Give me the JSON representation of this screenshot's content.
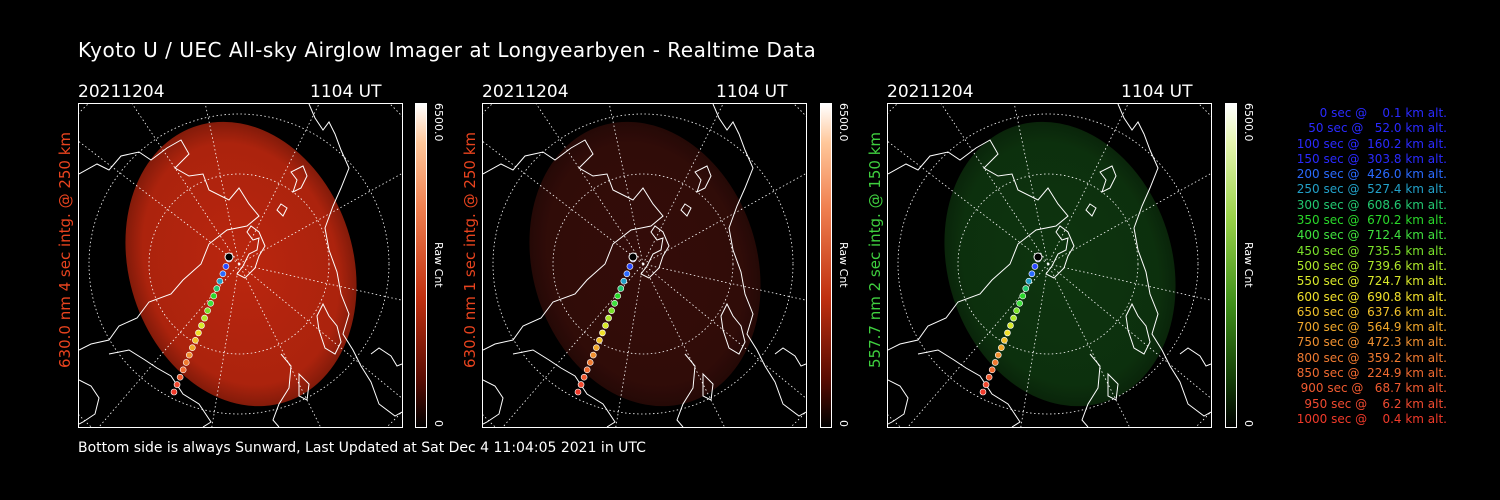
{
  "title": "Kyoto U / UEC All-sky Airglow Imager at Longyearbyen - Realtime Data",
  "footer": "Bottom side is always Sunward, Last Updated at Sat Dec  4 11:04:05 2021 in UTC",
  "colors": {
    "red": "#e8431e",
    "green": "#3fcf3f",
    "background": "#000000"
  },
  "panels": [
    {
      "date": "20211204",
      "time": "1104 UT",
      "side_label": "630.0 nm 4 sec intg. @ 250 km",
      "cbar_max": "6500.0",
      "cbar_label": "Raw Cnt",
      "cbar_min": "0",
      "image_color": "#c4280f",
      "image_brightness": "high"
    },
    {
      "date": "20211204",
      "time": "1104 UT",
      "side_label": "630.0 nm 1 sec intg. @ 250 km",
      "cbar_max": "6500.0",
      "cbar_label": "Raw Cnt",
      "cbar_min": "0",
      "image_color": "#3a0e0a",
      "image_brightness": "low"
    },
    {
      "date": "20211204",
      "time": "1104 UT",
      "side_label": "557.7 nm 2 sec intg. @ 150 km",
      "cbar_max": "6500.0",
      "cbar_label": "Raw Cnt",
      "cbar_min": "0",
      "image_color": "#0f3a10",
      "image_brightness": "low"
    }
  ],
  "legend": [
    {
      "text": "   0 sec @    0.1 km alt.",
      "color": "#2a2aff"
    },
    {
      "text": "  50 sec @   52.0 km alt.",
      "color": "#2a2aff"
    },
    {
      "text": " 100 sec @  160.2 km alt.",
      "color": "#2a2aff"
    },
    {
      "text": " 150 sec @  303.8 km alt.",
      "color": "#2a2aff"
    },
    {
      "text": " 200 sec @  426.0 km alt.",
      "color": "#2a6aff"
    },
    {
      "text": " 250 sec @  527.4 km alt.",
      "color": "#22a0c8"
    },
    {
      "text": " 300 sec @  608.6 km alt.",
      "color": "#22c870"
    },
    {
      "text": " 350 sec @  670.2 km alt.",
      "color": "#2ad82a"
    },
    {
      "text": " 400 sec @  712.4 km alt.",
      "color": "#3ee03e"
    },
    {
      "text": " 450 sec @  735.5 km alt.",
      "color": "#7ae02a"
    },
    {
      "text": " 500 sec @  739.6 km alt.",
      "color": "#aee82a"
    },
    {
      "text": " 550 sec @  724.7 km alt.",
      "color": "#d8e82a"
    },
    {
      "text": " 600 sec @  690.8 km alt.",
      "color": "#f0e02a"
    },
    {
      "text": " 650 sec @  637.6 km alt.",
      "color": "#f0c02a"
    },
    {
      "text": " 700 sec @  564.9 km alt.",
      "color": "#f0a82a"
    },
    {
      "text": " 750 sec @  472.3 km alt.",
      "color": "#f09030"
    },
    {
      "text": " 800 sec @  359.2 km alt.",
      "color": "#f07a30"
    },
    {
      "text": " 850 sec @  224.9 km alt.",
      "color": "#f06a30"
    },
    {
      "text": " 900 sec @   68.7 km alt.",
      "color": "#f05a30"
    },
    {
      "text": " 950 sec @    6.2 km alt.",
      "color": "#f04a30"
    },
    {
      "text": "1000 sec @    0.4 km alt.",
      "color": "#f03a2a"
    }
  ]
}
